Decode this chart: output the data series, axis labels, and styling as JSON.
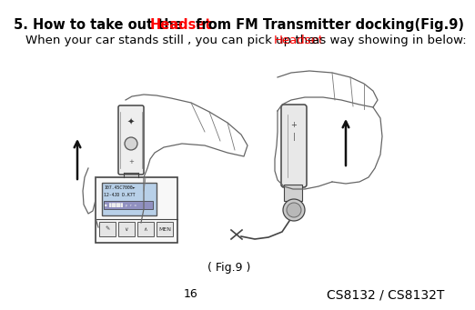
{
  "title_prefix": "5. How to take out the ",
  "title_red": "Headset",
  "title_suffix": " from FM Transmitter docking(Fig.9)",
  "subtitle_prefix": "When your car stands still , you can pick up the ",
  "subtitle_red": "Headset",
  "subtitle_suffix": " as way showing in below:",
  "fig_label": "( Fig.9 )",
  "page_number": "16",
  "model": "CS8132 / CS8132T",
  "bg_color": "#ffffff",
  "text_color": "#000000",
  "red_color": "#ff0000",
  "title_fontsize": 10.5,
  "subtitle_fontsize": 9.5,
  "fig_label_fontsize": 9,
  "page_fontsize": 9,
  "model_fontsize": 10,
  "lc": "#444444",
  "lw": 1.0
}
